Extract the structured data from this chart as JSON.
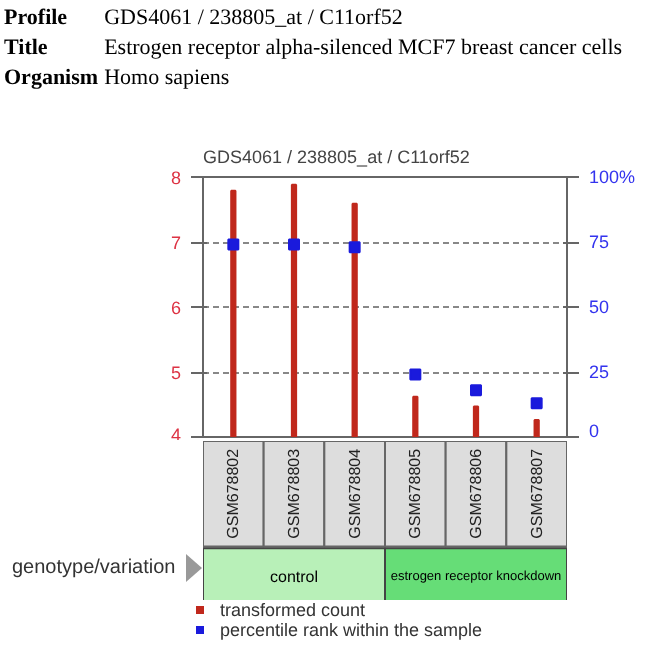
{
  "chart_data": {
    "type": "bar",
    "title": "GDS4061 / 238805_at / C11orf52",
    "annotations": [
      "Profile",
      "GDS4061 / 238805_at / C11orf52",
      "Title",
      "Estrogen receptor alpha-silenced MCF7 breast cancer cells",
      "Organism",
      "Homo sapiens",
      "genotype/variation",
      "control",
      "estrogen receptor knockdown"
    ],
    "categories": [
      "GSM678802",
      "GSM678803",
      "GSM678804",
      "GSM678805",
      "GSM678806",
      "GSM678807"
    ],
    "series": [
      {
        "name": "transformed count",
        "color": "#c0281c",
        "values": [
          7.79,
          7.88,
          7.59,
          4.62,
          4.47,
          4.26
        ]
      },
      {
        "name": "percentile rank within the sample",
        "type": "scatter",
        "color": "#1a1adc",
        "axis": "y2",
        "values": [
          74,
          74,
          73,
          24,
          18,
          13
        ]
      }
    ],
    "ylim": [
      4,
      8
    ],
    "yticks": [
      4,
      5,
      6,
      7,
      8
    ],
    "y2lim": [
      0,
      100
    ],
    "y2ticks": [
      0,
      25,
      50,
      75,
      {
        "value": 100,
        "label": "100%"
      }
    ],
    "grid": "y",
    "legend": "bottom",
    "marker": "square"
  }
}
